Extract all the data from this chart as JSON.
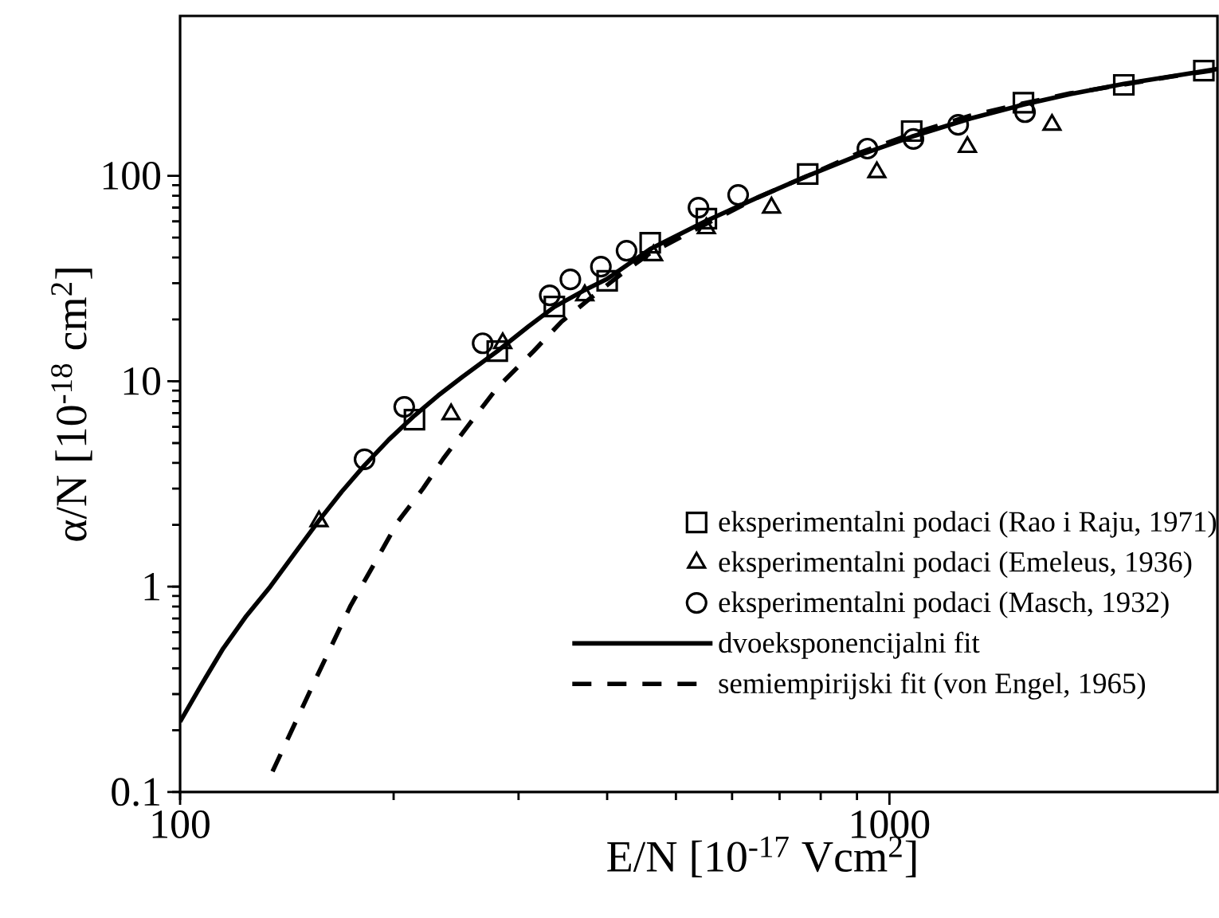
{
  "chart_data": {
    "type": "scatter",
    "xlabel": "E/N [10$^{-17}$ Vcm$^{2}$]",
    "ylabel": "α/N [10$^{-18}$ cm$^{2}$]",
    "log": "xy",
    "xlim": [
      100,
      2900
    ],
    "ylim": [
      0.1,
      600
    ],
    "xticks": [
      100,
      1000
    ],
    "yticks": [
      0.1,
      1,
      10,
      100
    ],
    "legend": "right",
    "series": [
      {
        "name": "eksperimentalni podaci (Rao i Raju, 1971)",
        "marker": "square",
        "color": "#000000",
        "x": [
          214,
          280,
          337,
          400,
          460,
          552,
          767,
          1075,
          1545,
          2140,
          2775
        ],
        "values": [
          6.5,
          14.0,
          23.1,
          30.8,
          47.2,
          61.8,
          102,
          165,
          227,
          277,
          325
        ]
      },
      {
        "name": "eksperimentalni podaci (Emeleus, 1936)",
        "marker": "triangle",
        "color": "#000000",
        "x": [
          157,
          241,
          285,
          372,
          465,
          552,
          682,
          960,
          1288,
          1695
        ],
        "values": [
          2.08,
          6.9,
          15.3,
          26.2,
          41,
          55.5,
          70,
          104,
          138,
          177
        ]
      },
      {
        "name": "eksperimentalni podaci (Masch, 1932)",
        "marker": "circle",
        "color": "#000000",
        "x": [
          182,
          207,
          267,
          332,
          355,
          392,
          426,
          538,
          612,
          931,
          1081,
          1250,
          1553
        ],
        "values": [
          4.17,
          7.5,
          15.3,
          26.2,
          31.3,
          36.1,
          43.2,
          70,
          80.7,
          135.6,
          151,
          177,
          204
        ]
      },
      {
        "name": "dvoeksponencijalni fit",
        "type": "line",
        "line_style": "solid",
        "marker": "none",
        "color": "#000000",
        "x": [
          100,
          107,
          115,
          124,
          134,
          145,
          157,
          169,
          182,
          197,
          214,
          231,
          250,
          280,
          310,
          337,
          370,
          400,
          460,
          550,
          650,
          767,
          900,
          1075,
          1300,
          1545,
          1800,
          2140,
          2500,
          2900
        ],
        "values": [
          0.22,
          0.33,
          0.5,
          0.72,
          1.0,
          1.45,
          2.1,
          2.9,
          3.9,
          5.2,
          6.8,
          8.5,
          10.5,
          14,
          18.5,
          23,
          27.5,
          31.5,
          44,
          60,
          78,
          100,
          125,
          155,
          190,
          222,
          250,
          280,
          305,
          331
        ]
      },
      {
        "name": "semiempirijski fit (von Engel, 1965)",
        "type": "line",
        "line_style": "dashed",
        "marker": "none",
        "color": "#000000",
        "x": [
          135,
          155,
          174,
          203,
          220,
          235,
          254,
          280,
          315,
          345,
          378,
          420,
          460,
          550,
          650,
          767,
          900,
          1075,
          1300,
          1545,
          1800,
          2140,
          2500,
          2900
        ],
        "values": [
          0.126,
          0.35,
          0.81,
          2.08,
          3.0,
          4.2,
          6.0,
          9.3,
          14,
          19.5,
          25.2,
          33.5,
          42,
          58,
          78,
          100,
          128,
          160,
          196,
          225,
          252,
          278,
          304,
          328
        ]
      }
    ]
  }
}
